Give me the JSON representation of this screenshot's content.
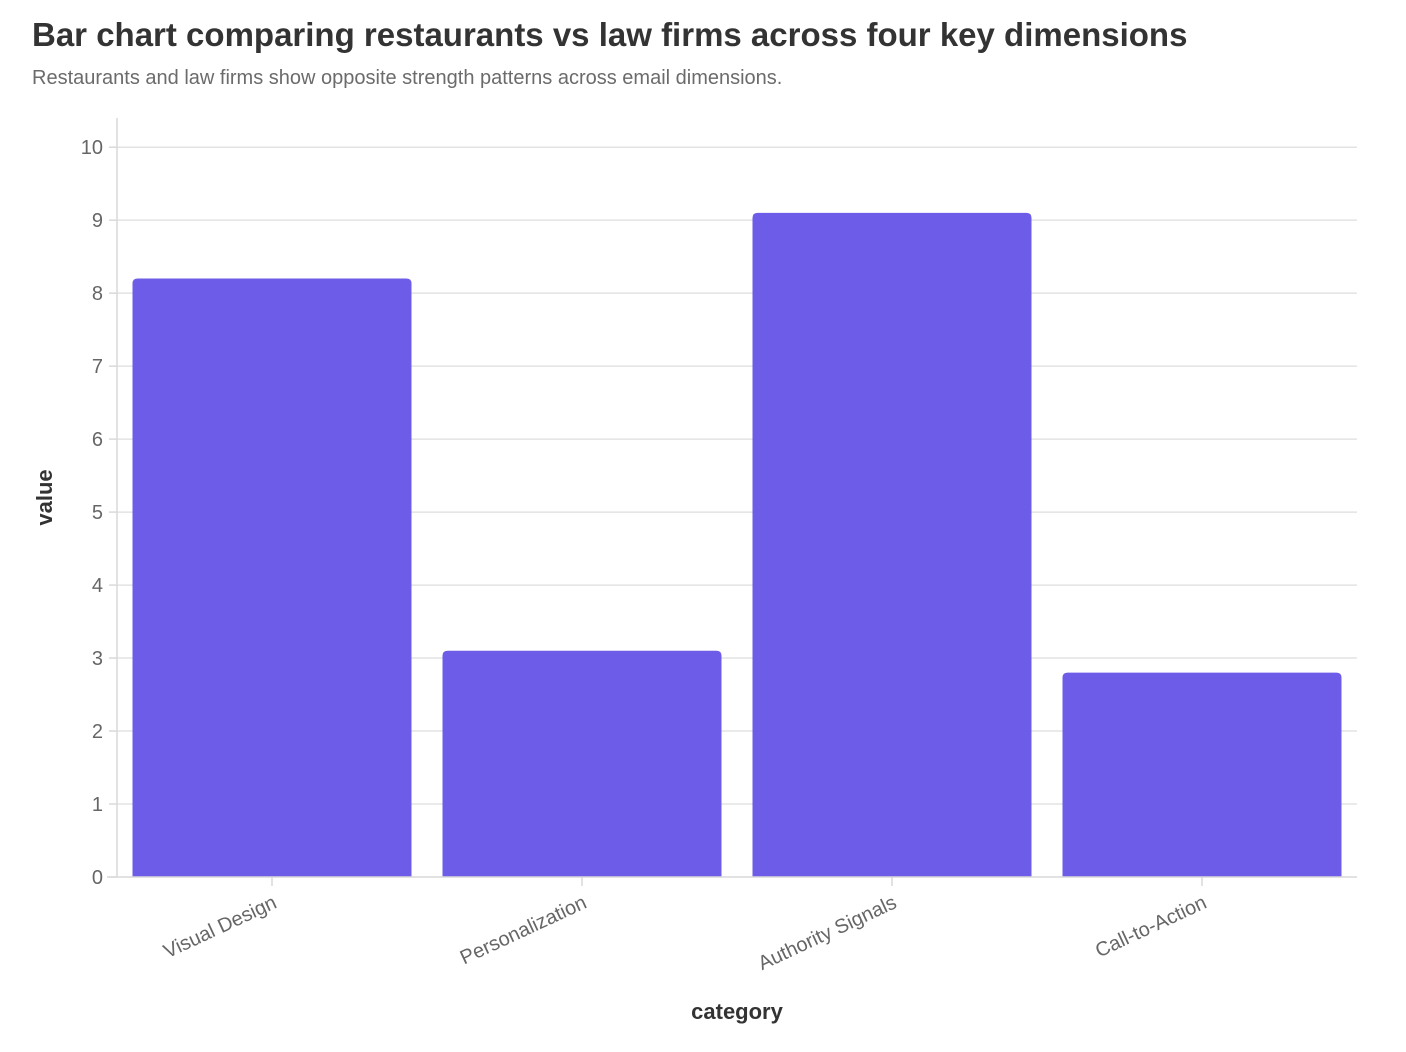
{
  "chart_data": {
    "type": "bar",
    "title": "Bar chart comparing restaurants vs law firms across four key dimensions",
    "subtitle": "Restaurants and law firms show opposite strength patterns across email dimensions.",
    "xlabel": "category",
    "ylabel": "value",
    "categories": [
      "Visual Design",
      "Personalization",
      "Authority Signals",
      "Call-to-Action"
    ],
    "values": [
      8.2,
      3.1,
      9.1,
      2.8
    ],
    "ylim": [
      0,
      10.4
    ],
    "yticks": [
      0,
      1,
      2,
      3,
      4,
      5,
      6,
      7,
      8,
      9,
      10
    ],
    "grid": true,
    "bar_color": "#6c5ce7"
  }
}
